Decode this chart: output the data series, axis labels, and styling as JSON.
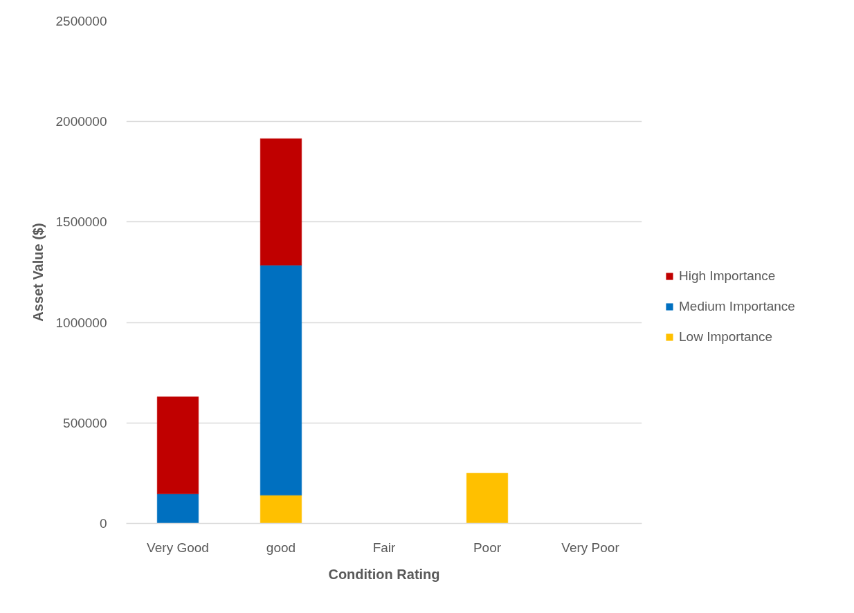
{
  "chart_data": {
    "type": "bar",
    "stacked": true,
    "xlabel": "Condition Rating",
    "ylabel": "Asset Value ($)",
    "categories": [
      "Very Good",
      "good",
      "Fair",
      "Poor",
      "Very Poor"
    ],
    "series": [
      {
        "name": "Low Importance",
        "color": "#ffc000",
        "values": [
          null,
          140000,
          null,
          250000,
          null
        ]
      },
      {
        "name": "Medium Importance",
        "color": "#0070c0",
        "values": [
          147000,
          1145000,
          null,
          null,
          null
        ]
      },
      {
        "name": "High Importance",
        "color": "#c00000",
        "values": [
          483000,
          630000,
          null,
          null,
          null
        ]
      }
    ],
    "ylim": [
      0,
      2500000
    ],
    "yticks": [
      0,
      500000,
      1000000,
      1500000,
      2000000,
      2500000
    ],
    "grid": "y",
    "legend": "right"
  }
}
